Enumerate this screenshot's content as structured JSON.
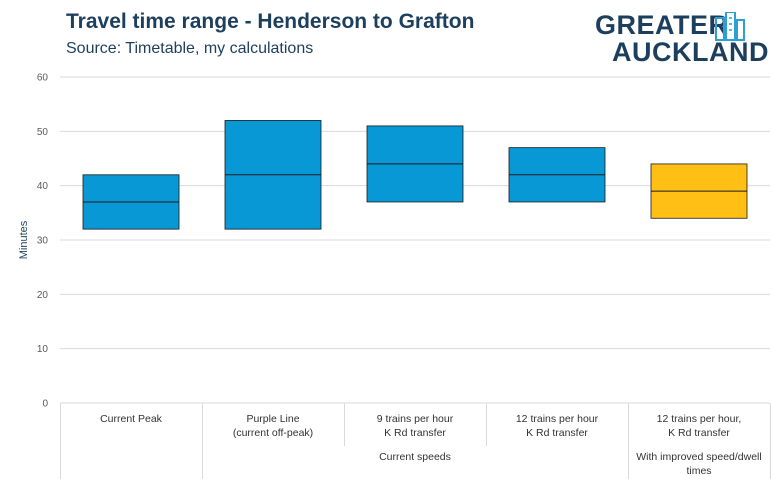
{
  "header": {
    "title": "Travel time range - Henderson to Grafton",
    "subtitle": "Source: Timetable, my calculations"
  },
  "logo": {
    "line1": "GREATER",
    "line2": "AUCKLAND",
    "color": "#1d3f5e",
    "accent": "#2b9fd6"
  },
  "colors": {
    "blue": "#0898d6",
    "yellow": "#ffbf14",
    "grid": "#d9d9d9",
    "median_line": "#1a1a1a"
  },
  "chart_data": {
    "type": "floating-bar",
    "title": "Travel time range - Henderson to Grafton",
    "subtitle": "Source: Timetable, my calculations",
    "ylabel": "Minutes",
    "ylim": [
      0,
      60
    ],
    "yticks": [
      0,
      10,
      20,
      30,
      40,
      50,
      60
    ],
    "grid": true,
    "categories": [
      {
        "lines": [
          "Current Peak"
        ],
        "min": 32,
        "median": 37,
        "max": 42,
        "color": "#0898d6"
      },
      {
        "lines": [
          "Purple Line",
          "(current off-peak)"
        ],
        "min": 32,
        "median": 42,
        "max": 52,
        "color": "#0898d6"
      },
      {
        "lines": [
          "9 trains per hour",
          "K Rd transfer"
        ],
        "min": 37,
        "median": 44,
        "max": 51,
        "color": "#0898d6"
      },
      {
        "lines": [
          "12 trains per hour",
          "K Rd transfer"
        ],
        "min": 37,
        "median": 42,
        "max": 47,
        "color": "#0898d6"
      },
      {
        "lines": [
          "12 trains per hour,",
          "K Rd transfer"
        ],
        "min": 34,
        "median": 39,
        "max": 44,
        "color": "#ffbf14"
      }
    ],
    "groups": [
      {
        "label": "Current speeds",
        "span": [
          1,
          3
        ]
      },
      {
        "label_lines": [
          "With improved speed/dwell",
          "times"
        ],
        "span": [
          4,
          4
        ]
      }
    ]
  }
}
